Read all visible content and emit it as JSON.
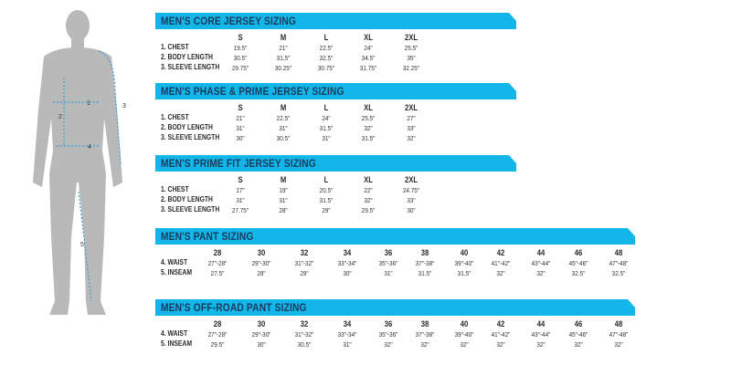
{
  "colors": {
    "banner": "#12b6e8",
    "banner_text": "#1b3a5c",
    "silhouette": "#b9b9b9",
    "measure_line": "#3aa0d8"
  },
  "figure": {
    "labels": [
      "1",
      "2",
      "3",
      "4",
      "5"
    ]
  },
  "sections": [
    {
      "title": "MEN'S CORE JERSEY SIZING",
      "sizes": [
        "S",
        "M",
        "L",
        "XL",
        "2XL"
      ],
      "rows": [
        {
          "label": "1. CHEST",
          "values": [
            "19.5\"",
            "21\"",
            "22.5\"",
            "24\"",
            "25.5\""
          ]
        },
        {
          "label": "2. BODY LENGTH",
          "values": [
            "30.5\"",
            "31.5\"",
            "32.5\"",
            "34.5\"",
            "35\""
          ]
        },
        {
          "label": "3. SLEEVE LENGTH",
          "values": [
            "29.75\"",
            "30.25\"",
            "30.75\"",
            "31.75\"",
            "32.25\""
          ]
        }
      ]
    },
    {
      "title": "MEN'S PHASE & PRIME JERSEY SIZING",
      "sizes": [
        "S",
        "M",
        "L",
        "XL",
        "2XL"
      ],
      "rows": [
        {
          "label": "1. CHEST",
          "values": [
            "21\"",
            "22.5\"",
            "24\"",
            "25.5\"",
            "27\""
          ]
        },
        {
          "label": "2. BODY LENGTH",
          "values": [
            "31\"",
            "31\"",
            "31.5\"",
            "32\"",
            "33\""
          ]
        },
        {
          "label": "3. SLEEVE LENGTH",
          "values": [
            "30\"",
            "30.5\"",
            "31\"",
            "31.5\"",
            "32\""
          ]
        }
      ]
    },
    {
      "title": "MEN'S PRIME FIT JERSEY SIZING",
      "sizes": [
        "S",
        "M",
        "L",
        "XL",
        "2XL"
      ],
      "rows": [
        {
          "label": "1. CHEST",
          "values": [
            "17\"",
            "19\"",
            "20.5\"",
            "22\"",
            "24.75\""
          ]
        },
        {
          "label": "2. BODY LENGTH",
          "values": [
            "31\"",
            "31\"",
            "31.5\"",
            "32\"",
            "33\""
          ]
        },
        {
          "label": "3. SLEEVE LENGTH",
          "values": [
            "27.75\"",
            "28\"",
            "29\"",
            "29.5\"",
            "30\""
          ]
        }
      ]
    },
    {
      "title": "MEN'S PANT SIZING",
      "sizes": [
        "28",
        "30",
        "32",
        "34",
        "36",
        "38",
        "40",
        "42",
        "44",
        "46",
        "48"
      ],
      "rows": [
        {
          "label": "4. WAIST",
          "values": [
            "27\"-28\"",
            "29\"-30\"",
            "31\"-32\"",
            "33\"-34\"",
            "35\"-36\"",
            "37\"-38\"",
            "39\"-40\"",
            "41\"-42\"",
            "43\"-44\"",
            "45\"-46\"",
            "47\"-48\""
          ]
        },
        {
          "label": "5. INSEAM",
          "values": [
            "27.5\"",
            "28\"",
            "29\"",
            "30\"",
            "31\"",
            "31.5\"",
            "31.5\"",
            "32\"",
            "32\"",
            "32.5\"",
            "32.5\""
          ]
        }
      ]
    },
    {
      "title": "MEN'S OFF-ROAD PANT SIZING",
      "sizes": [
        "28",
        "30",
        "32",
        "34",
        "36",
        "38",
        "40",
        "42",
        "44",
        "46",
        "48"
      ],
      "rows": [
        {
          "label": "4. WAIST",
          "values": [
            "27\"-28\"",
            "29\"-30\"",
            "31\"-32\"",
            "33\"-34\"",
            "35\"-36\"",
            "37\"-38\"",
            "39\"-40\"",
            "41\"-42\"",
            "43\"-44\"",
            "45\"-46\"",
            "47\"-48\""
          ]
        },
        {
          "label": "5. INSEAM",
          "values": [
            "29.5\"",
            "30\"",
            "30.5\"",
            "31\"",
            "32\"",
            "32\"",
            "32\"",
            "32\"",
            "32\"",
            "32\"",
            "32\""
          ]
        }
      ]
    }
  ]
}
